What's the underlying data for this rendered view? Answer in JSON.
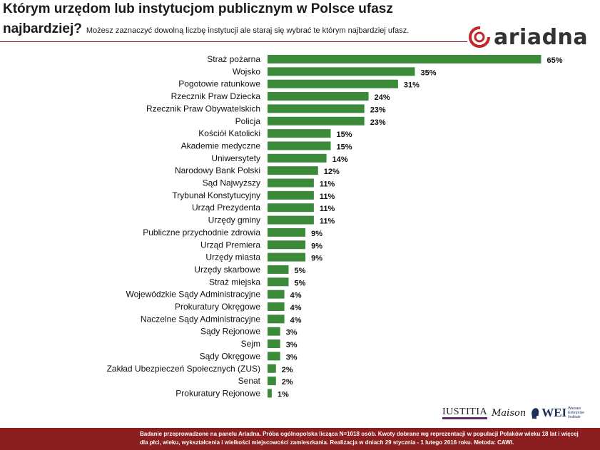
{
  "title": {
    "line1": "Którym urzędom lub instytucjom publicznym w Polsce ufasz",
    "line2": "najbardziej?",
    "subtitle": "Możesz zaznaczyć dowolną liczbę instytucji ale staraj się wybrać te którym najbardziej ufasz."
  },
  "brand": {
    "logo_text": "ariadna",
    "accent": "#c0282d"
  },
  "sponsors": {
    "iustitia": "IUSTITIA",
    "maison": "Maison",
    "wei": "WEI",
    "wei_caption": "Warsaw Enterprise Institute"
  },
  "footer": {
    "line1": "Badanie przeprowadzone na panelu Ariadna. Próba ogólnopolska licząca N=1018 osób. Kwoty dobrane wg reprezentacji w populacji Polaków wieku 18 lat i więcej",
    "line2": "dla płci, wieku, wykształcenia i wielkości miejscowości zamieszkania. Realizacja w dniach 29 stycznia - 1 lutego 2016 roku. Metoda: CAWI."
  },
  "colors": {
    "bar": "#3a8a3a",
    "footer_bg": "#8b1e1e",
    "rule": "#7a1a1a"
  },
  "chart_data": {
    "type": "bar",
    "orientation": "horizontal",
    "title": "Którym urzędom lub instytucjom publicznym w Polsce ufasz najbardziej?",
    "unit": "%",
    "categories": [
      "Straż pożarna",
      "Wojsko",
      "Pogotowie ratunkowe",
      "Rzecznik Praw Dziecka",
      "Rzecznik Praw Obywatelskich",
      "Policja",
      "Kościół Katolicki",
      "Akademie medyczne",
      "Uniwersytety",
      "Narodowy Bank Polski",
      "Sąd Najwyższy",
      "Trybunał Konstytucyjny",
      "Urząd Prezydenta",
      "Urzędy gminy",
      "Publiczne przychodnie zdrowia",
      "Urząd Premiera",
      "Urzędy miasta",
      "Urzędy skarbowe",
      "Straż miejska",
      "Wojewódzkie Sądy Administracyjne",
      "Prokuratury Okręgowe",
      "Naczelne Sądy Administracyjne",
      "Sądy Rejonowe",
      "Sejm",
      "Sądy Okręgowe",
      "Zakład Ubezpieczeń Społecznych (ZUS)",
      "Senat",
      "Prokuratury Rejonowe"
    ],
    "values": [
      65,
      35,
      31,
      24,
      23,
      23,
      15,
      15,
      14,
      12,
      11,
      11,
      11,
      11,
      9,
      9,
      9,
      5,
      5,
      4,
      4,
      4,
      3,
      3,
      3,
      2,
      2,
      1
    ],
    "value_labels": [
      "65%",
      "35%",
      "31%",
      "24%",
      "23%",
      "23%",
      "15%",
      "15%",
      "14%",
      "12%",
      "11%",
      "11%",
      "11%",
      "11%",
      "9%",
      "9%",
      "9%",
      "5%",
      "5%",
      "4%",
      "4%",
      "4%",
      "3%",
      "3%",
      "3%",
      "2%",
      "2%",
      "1%"
    ],
    "xlim": [
      0,
      65
    ],
    "grid": false,
    "legend": "none"
  }
}
